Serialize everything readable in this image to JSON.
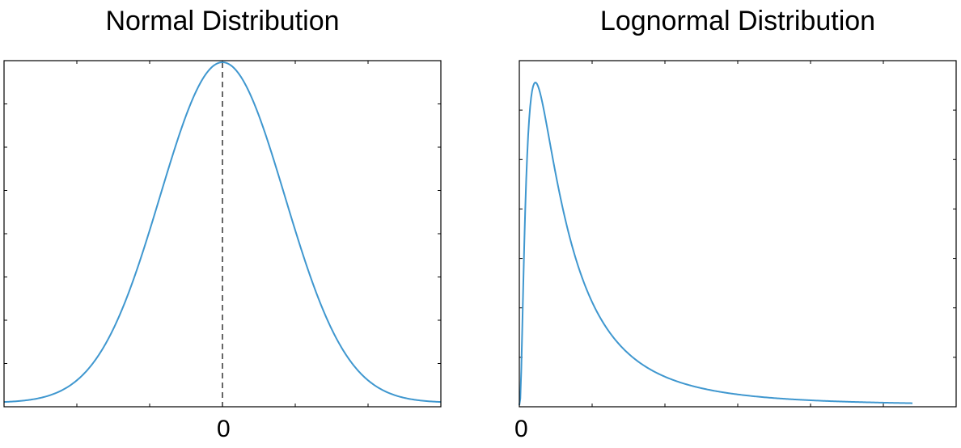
{
  "chart_data": [
    {
      "type": "line",
      "title": "Normal Distribution",
      "xlabel": "",
      "ylabel": "",
      "tick_labels_x": [
        {
          "value": 0,
          "label": "0"
        }
      ],
      "xlim": [
        -3.5,
        3.5
      ],
      "ylim": [
        0,
        1.0
      ],
      "grid": false,
      "series": [
        {
          "color": "#3f97cf",
          "function": "normal-pdf",
          "mu": 0,
          "sigma": 1,
          "x": [
            -3.5,
            -3,
            -2.5,
            -2,
            -1.5,
            -1,
            -0.5,
            0,
            0.5,
            1,
            1.5,
            2,
            2.5,
            3,
            3.5
          ],
          "y": [
            0.002,
            0.011,
            0.044,
            0.135,
            0.325,
            0.607,
            0.882,
            1.0,
            0.882,
            0.607,
            0.325,
            0.135,
            0.044,
            0.011,
            0.002
          ]
        }
      ],
      "annotations": [
        {
          "type": "vertical-dashed-line",
          "x": 0,
          "color": "#000000"
        }
      ]
    },
    {
      "type": "line",
      "title": "Lognormal Distribution",
      "xlabel": "",
      "ylabel": "",
      "tick_labels_x": [
        {
          "value": 0,
          "label": "0"
        }
      ],
      "xlim": [
        0,
        10
      ],
      "ylim": [
        0,
        1.0
      ],
      "grid": false,
      "series": [
        {
          "color": "#3f97cf",
          "function": "lognormal-pdf",
          "mu": 0,
          "sigma": 1,
          "x": [
            0,
            0.25,
            0.5,
            1,
            1.5,
            2,
            3,
            4,
            5,
            6,
            7,
            8,
            9
          ],
          "y": [
            0,
            0.6,
            0.9,
            0.6,
            0.35,
            0.22,
            0.1,
            0.05,
            0.03,
            0.02,
            0.013,
            0.009,
            0.006
          ]
        }
      ]
    }
  ]
}
